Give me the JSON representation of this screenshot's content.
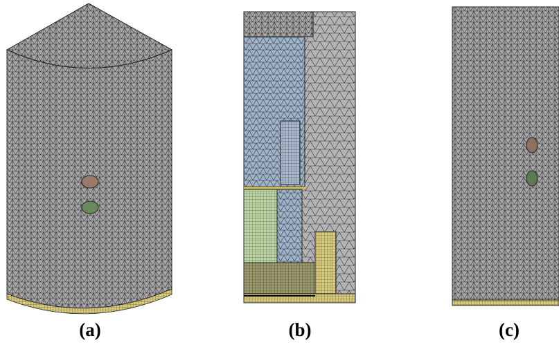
{
  "panels": [
    {
      "label": "(a)"
    },
    {
      "label": "(b)"
    },
    {
      "label": "(c)"
    }
  ]
}
